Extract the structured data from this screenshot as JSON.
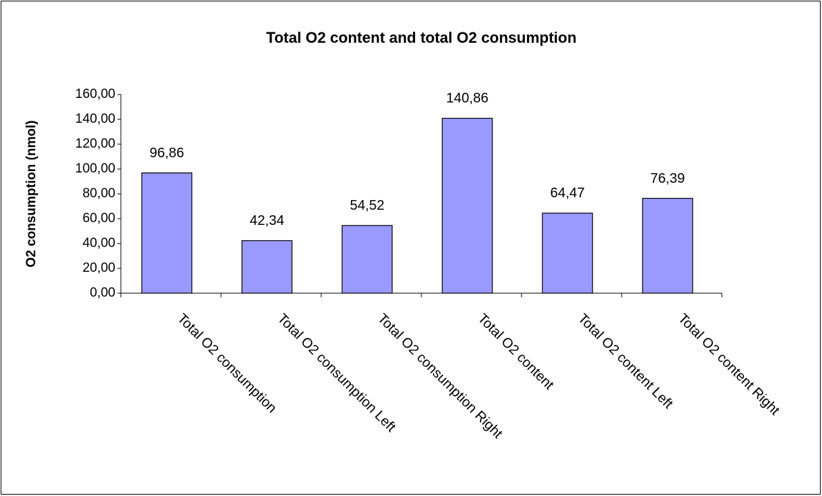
{
  "chart_data": {
    "type": "bar",
    "title": "Total O2 content and total O2 consumption",
    "ylabel": "O2 consumption (nmol)",
    "categories": [
      "Total O2 consumption",
      "Total O2 consumption Left",
      "Total O2 consumption Right",
      "Total O2 content",
      "Total O2 content Left",
      "Total O2 content Right"
    ],
    "values": [
      96.86,
      42.34,
      54.52,
      140.86,
      64.47,
      76.39
    ],
    "value_labels": [
      "96,86",
      "42,34",
      "54,52",
      "140,86",
      "64,47",
      "76,39"
    ],
    "color": "#9999ff",
    "ylim": [
      0,
      160
    ],
    "yticks": [
      {
        "value": 0,
        "label": "0,00"
      },
      {
        "value": 20,
        "label": "20,00"
      },
      {
        "value": 40,
        "label": "40,00"
      },
      {
        "value": 60,
        "label": "60,00"
      },
      {
        "value": 80,
        "label": "80,00"
      },
      {
        "value": 100,
        "label": "100,00"
      },
      {
        "value": 120,
        "label": "120,00"
      },
      {
        "value": 140,
        "label": "140,00"
      },
      {
        "value": 160,
        "label": "160,00"
      }
    ],
    "grid": false
  }
}
